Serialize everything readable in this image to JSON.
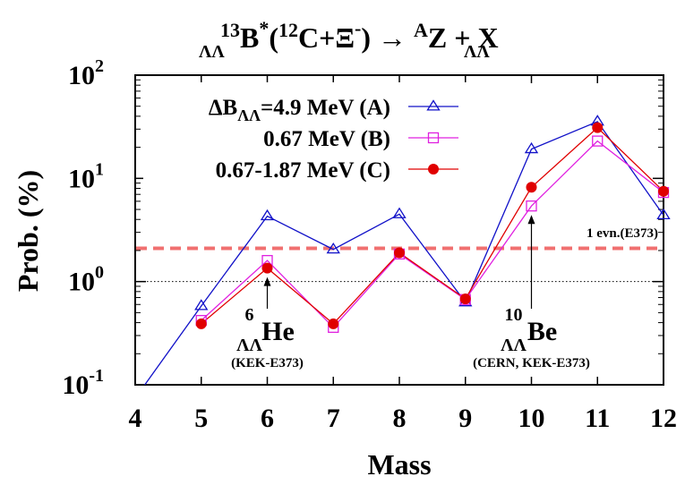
{
  "chart_data": {
    "type": "line",
    "title": {
      "pre": "ΛΛ",
      "sup13": "13",
      "b": "B",
      "star": "*",
      "paren_open": "(",
      "sup12": "12",
      "c_xi": "C+Ξ",
      "minus": "-",
      "paren_close": ")",
      "arrow": " → ",
      "pre2": "ΛΛ",
      "supA": "A",
      "z": "Z + X"
    },
    "xlabel": "Mass",
    "ylabel": "Prob. (%)",
    "x_scale": "linear",
    "y_scale": "log",
    "xlim": [
      4,
      12
    ],
    "ylim": [
      0.1,
      100
    ],
    "x_ticks": [
      "4",
      "5",
      "6",
      "7",
      "8",
      "9",
      "10",
      "11",
      "12"
    ],
    "y_ticks": [
      {
        "base": "10",
        "exp": "2",
        "value": 100
      },
      {
        "base": "10",
        "exp": "1",
        "value": 10
      },
      {
        "base": "10",
        "exp": "0",
        "value": 1
      },
      {
        "base": "10",
        "exp": "-1",
        "value": 0.1
      }
    ],
    "legend_position": "top-left",
    "series": [
      {
        "name_prefix": "ΔB",
        "name_sub": "ΛΛ",
        "name": "=4.9 MeV (A)",
        "color": "#1010c8",
        "marker": "triangle-open",
        "x": [
          3.7,
          5,
          6,
          7,
          8,
          9,
          10,
          11,
          12
        ],
        "y": [
          0.04,
          0.58,
          4.3,
          2.05,
          4.5,
          0.63,
          19.2,
          35.5,
          4.4
        ]
      },
      {
        "name": "0.67 MeV (B)",
        "color": "#e020e0",
        "marker": "square-open",
        "x": [
          5,
          6,
          7,
          8,
          9,
          10,
          11,
          12
        ],
        "y": [
          0.42,
          1.6,
          0.36,
          1.85,
          0.67,
          5.4,
          23.0,
          7.3
        ]
      },
      {
        "name": "0.67-1.87 MeV (C)",
        "color": "#e00000",
        "marker": "circle-filled",
        "x": [
          5,
          6,
          7,
          8,
          9,
          10,
          11,
          12
        ],
        "y": [
          0.39,
          1.35,
          0.39,
          1.9,
          0.68,
          8.2,
          31.0,
          7.5
        ]
      }
    ],
    "reference_lines": [
      {
        "label": "1 evn.(E373)",
        "y": 2.1,
        "color": "#f07070",
        "style": "dashed"
      },
      {
        "label": "",
        "y": 1.0,
        "color": "#000000",
        "style": "dotted"
      }
    ],
    "annotations": [
      {
        "x": 6,
        "y": 1.35,
        "sup": "6",
        "sub": "ΛΛ",
        "main": "He",
        "note": "(KEK-E373)"
      },
      {
        "x": 10,
        "y": 5.4,
        "sup": "10",
        "sub": "ΛΛ",
        "main": "Be",
        "note": "(CERN, KEK-E373)"
      }
    ]
  }
}
